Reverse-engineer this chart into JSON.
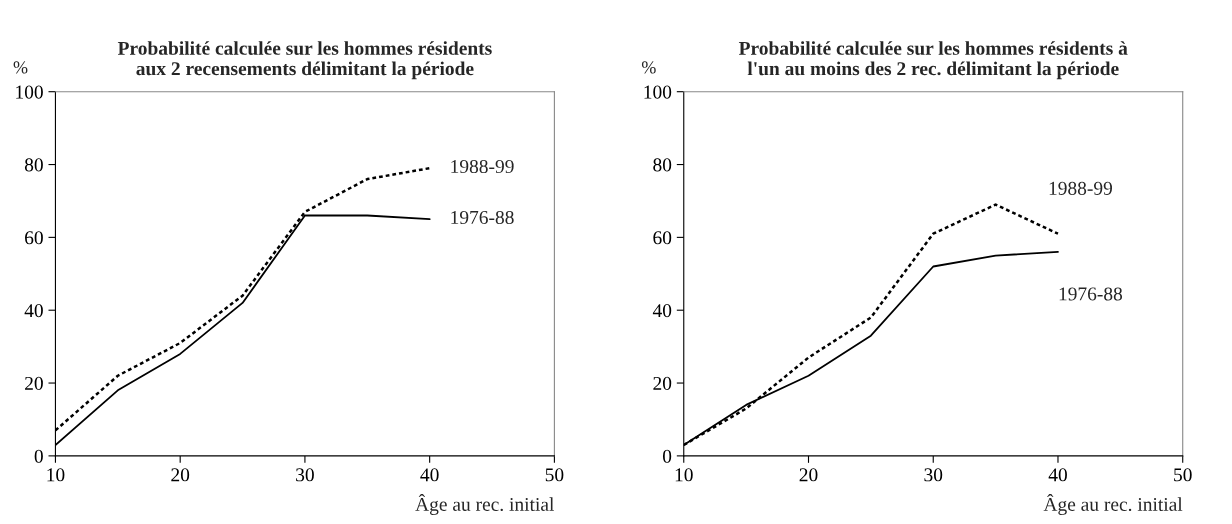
{
  "chart_data": [
    {
      "type": "line",
      "title": "Probabilité calculée sur les hommes résidents\naux 2 recensements délimitant la période",
      "ylabel": "%",
      "xlabel": "Âge au rec. initial",
      "x": [
        10,
        15,
        20,
        25,
        30,
        35,
        40
      ],
      "xlim": [
        10,
        50
      ],
      "xticks": [
        10,
        20,
        30,
        40,
        50
      ],
      "ylim": [
        0,
        100
      ],
      "yticks": [
        0,
        20,
        40,
        60,
        80,
        100
      ],
      "grid": false,
      "legend": false,
      "series": [
        {
          "name": "1988-99",
          "color": "#000000",
          "line_style": "dotted",
          "values": [
            7,
            22,
            31,
            44,
            67,
            76,
            79
          ]
        },
        {
          "name": "1976-88",
          "color": "#000000",
          "line_style": "solid",
          "values": [
            3,
            18,
            28,
            42,
            66,
            66,
            65
          ]
        }
      ]
    },
    {
      "type": "line",
      "title": "Probabilité calculée sur les hommes résidents à\nl'un au moins des 2 rec. délimitant la période",
      "ylabel": "%",
      "xlabel": "Âge au rec. initial",
      "x": [
        10,
        15,
        20,
        25,
        30,
        35,
        40
      ],
      "xlim": [
        10,
        50
      ],
      "xticks": [
        10,
        20,
        30,
        40,
        50
      ],
      "ylim": [
        0,
        100
      ],
      "yticks": [
        0,
        20,
        40,
        60,
        80,
        100
      ],
      "grid": false,
      "legend": false,
      "series": [
        {
          "name": "1988-99",
          "color": "#000000",
          "line_style": "dotted",
          "values": [
            3,
            13,
            27,
            38,
            61,
            69,
            61
          ]
        },
        {
          "name": "1976-88",
          "color": "#000000",
          "line_style": "solid",
          "values": [
            3,
            14,
            22,
            33,
            52,
            55,
            56
          ]
        }
      ]
    }
  ]
}
